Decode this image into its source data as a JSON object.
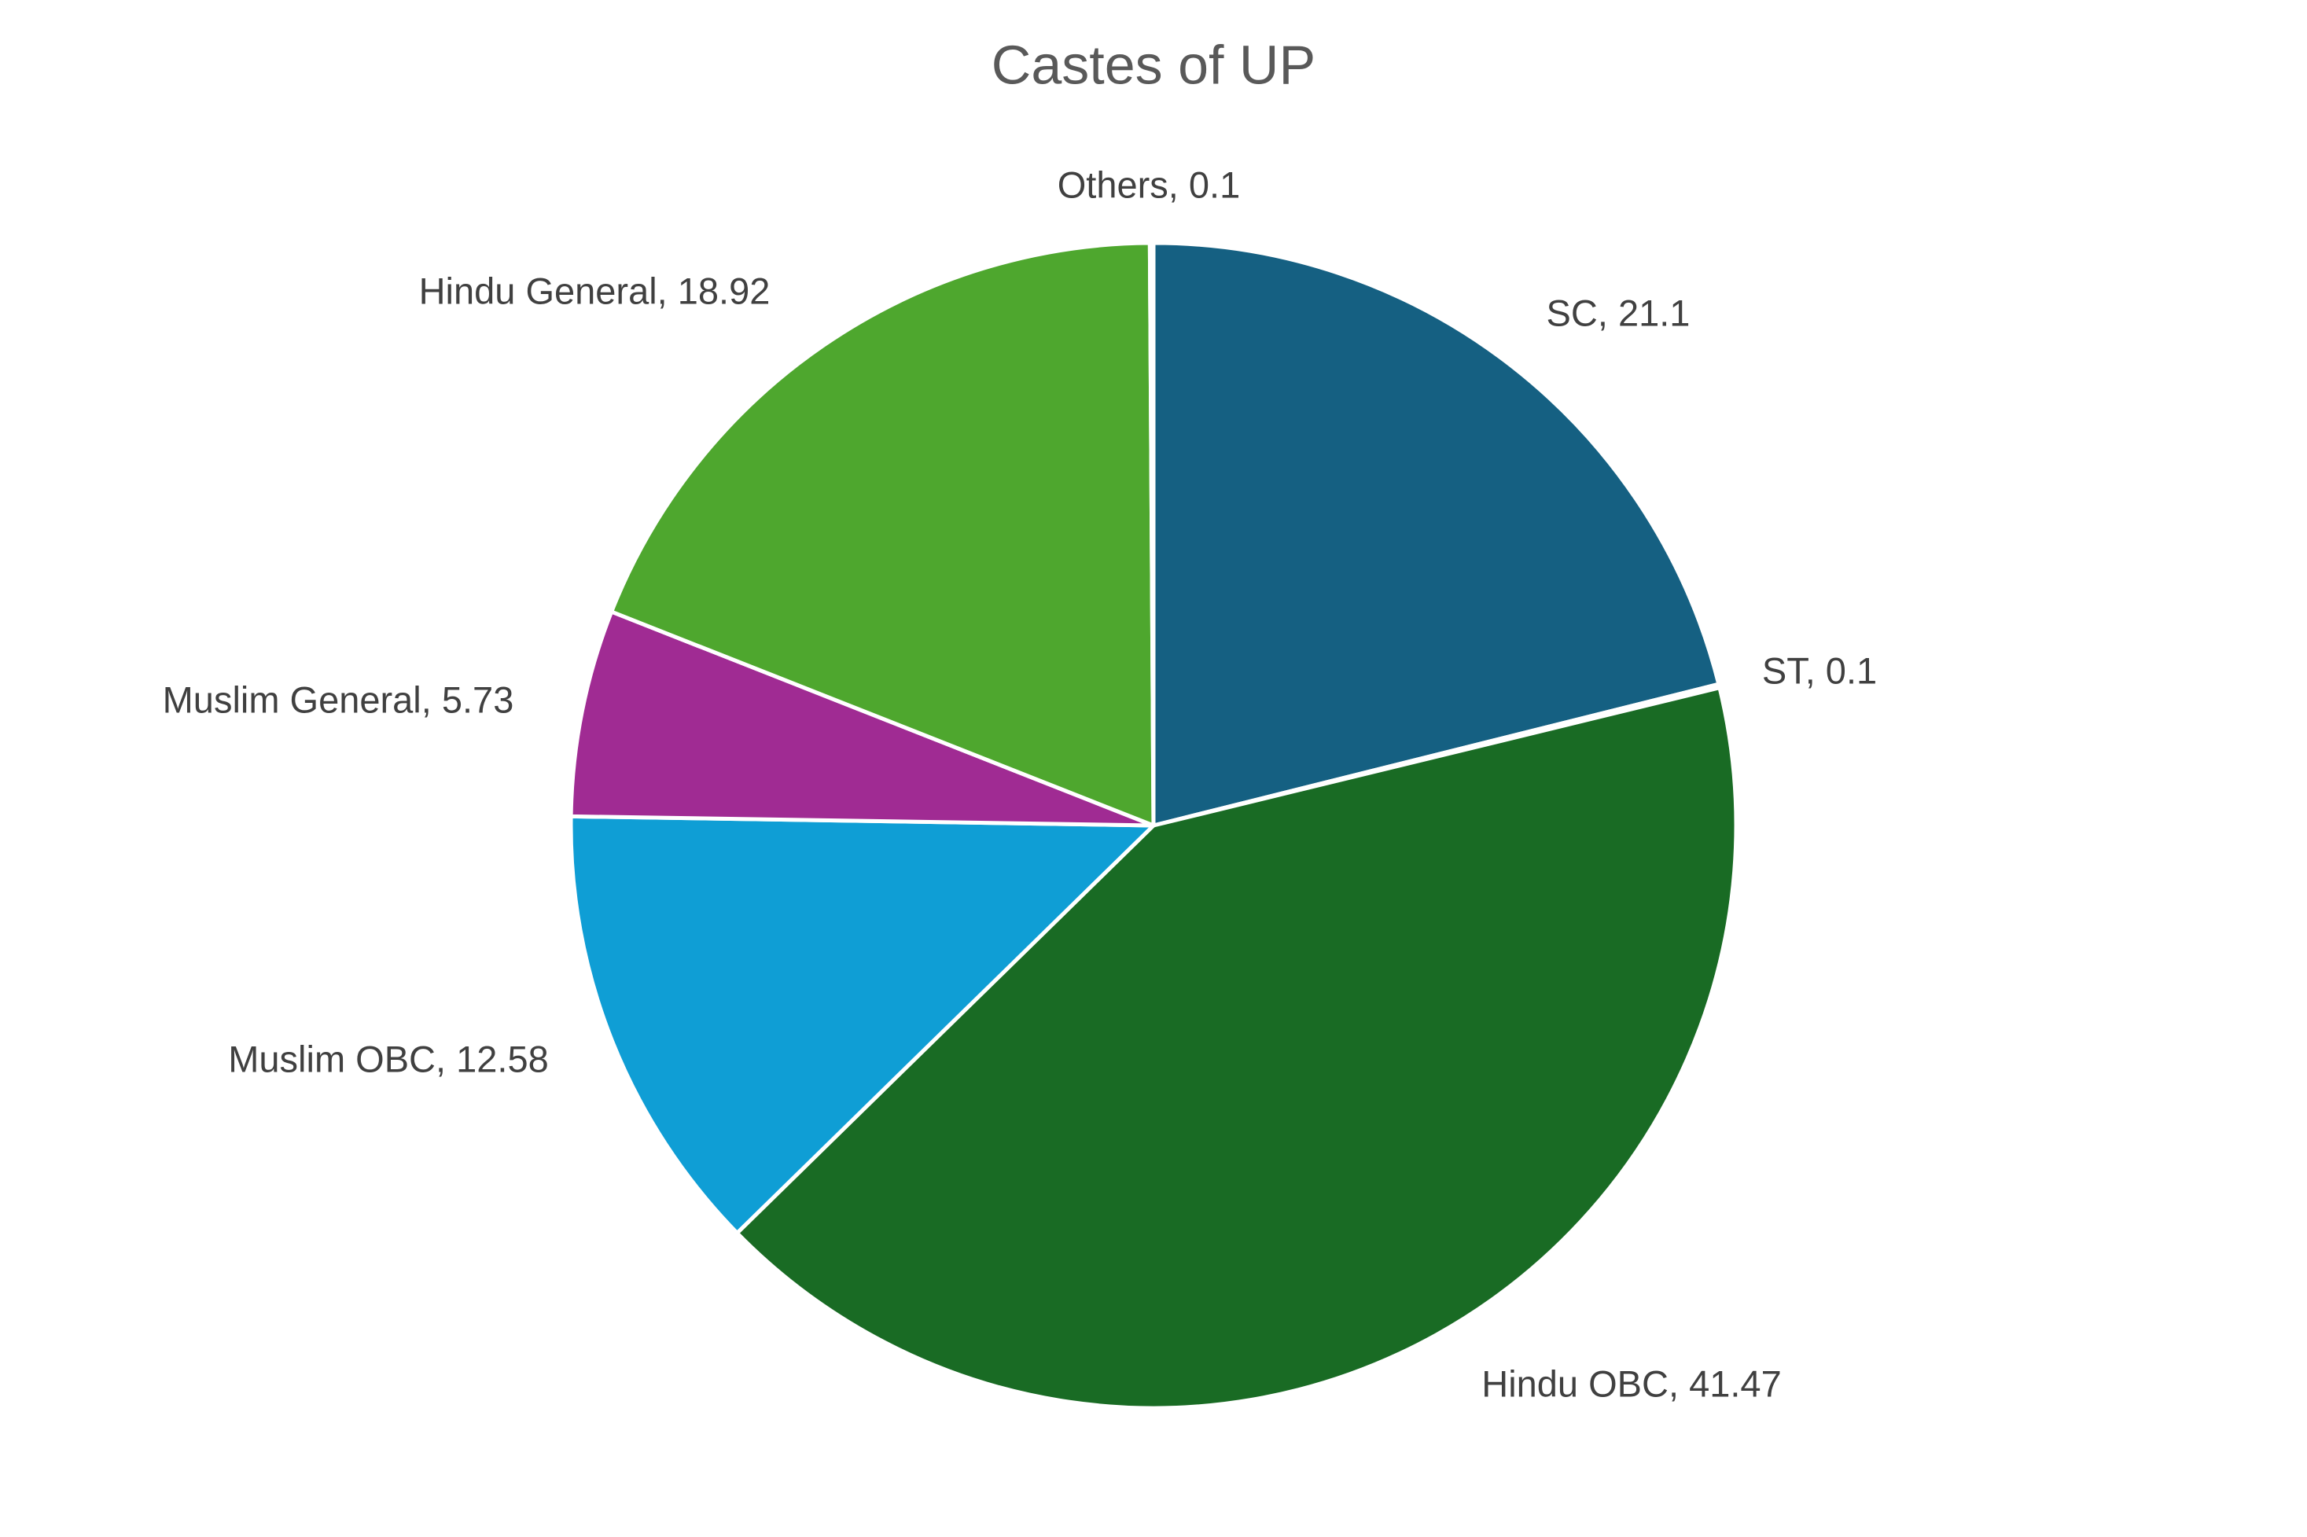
{
  "chart_data": {
    "type": "pie",
    "title": "Castes of UP",
    "values": [
      21.1,
      0.1,
      41.47,
      12.58,
      5.73,
      18.92,
      0.1
    ],
    "value_labels": [
      "SC, 21.1",
      "ST, 0.1",
      "Hindu OBC, 41.47",
      "Muslim OBC, 12.58",
      "Muslim General, 5.73",
      "Hindu General, 18.92",
      "Others, 0.1"
    ],
    "colors": [
      "#156082",
      "#e97132",
      "#196b24",
      "#0f9ed5",
      "#a02b93",
      "#4ea72e",
      "#60cbf3"
    ]
  }
}
